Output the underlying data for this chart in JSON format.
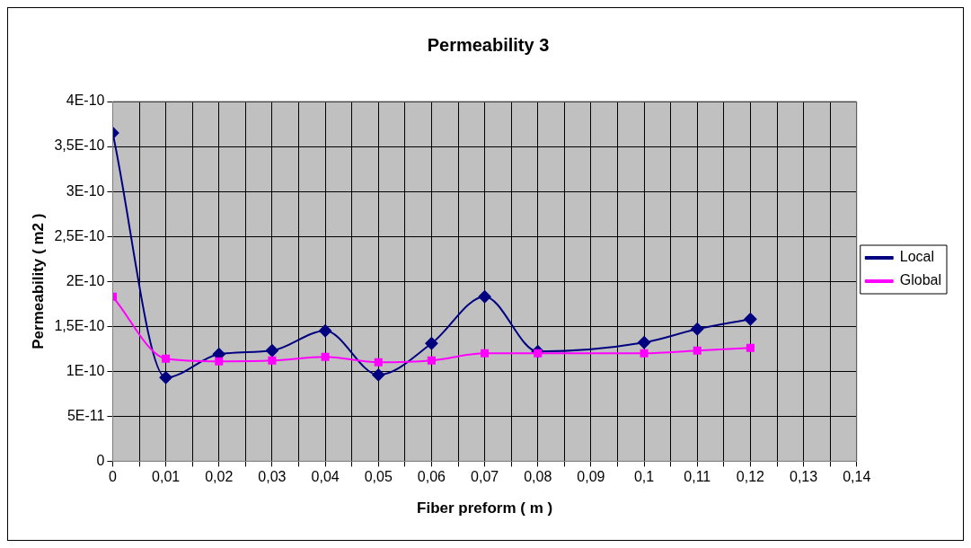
{
  "chart_data": {
    "type": "line",
    "title": "Permeability 3",
    "xlabel": "Fiber preform ( m )",
    "ylabel": "Permeability ( m2 )",
    "x": [
      0,
      0.01,
      0.02,
      0.03,
      0.04,
      0.05,
      0.06,
      0.07,
      0.08,
      0.1,
      0.11,
      0.12
    ],
    "series": [
      {
        "name": "Local",
        "color": "#000080",
        "marker": "diamond",
        "values": [
          3.65e-10,
          9.3e-11,
          1.19e-10,
          1.23e-10,
          1.45e-10,
          9.6e-11,
          1.31e-10,
          1.83e-10,
          1.22e-10,
          1.32e-10,
          1.47e-10,
          1.58e-10
        ]
      },
      {
        "name": "Global",
        "color": "#ff00ff",
        "marker": "square",
        "values": [
          1.83e-10,
          1.14e-10,
          1.11e-10,
          1.12e-10,
          1.16e-10,
          1.1e-10,
          1.12e-10,
          1.2e-10,
          1.2e-10,
          1.2e-10,
          1.23e-10,
          1.26e-10
        ]
      }
    ],
    "xlim": [
      0,
      0.14
    ],
    "xticks": [
      0,
      {
        "value": 0.005,
        "label": null
      },
      {
        "value": 0.01,
        "label": "0,01"
      },
      {
        "value": 0.015,
        "label": null
      },
      {
        "value": 0.02,
        "label": "0,02"
      },
      {
        "value": 0.025,
        "label": null
      },
      {
        "value": 0.03,
        "label": "0,03"
      },
      {
        "value": 0.035,
        "label": null
      },
      {
        "value": 0.04,
        "label": "0,04"
      },
      {
        "value": 0.045,
        "label": null
      },
      {
        "value": 0.05,
        "label": "0,05"
      },
      {
        "value": 0.055,
        "label": null
      },
      {
        "value": 0.06,
        "label": "0,06"
      },
      {
        "value": 0.065,
        "label": null
      },
      {
        "value": 0.07,
        "label": "0,07"
      },
      {
        "value": 0.075,
        "label": null
      },
      {
        "value": 0.08,
        "label": "0,08"
      },
      {
        "value": 0.085,
        "label": null
      },
      {
        "value": 0.09,
        "label": "0,09"
      },
      {
        "value": 0.095,
        "label": null
      },
      {
        "value": 0.1,
        "label": "0,1"
      },
      {
        "value": 0.105,
        "label": null
      },
      {
        "value": 0.11,
        "label": "0,11"
      },
      {
        "value": 0.115,
        "label": null
      },
      {
        "value": 0.12,
        "label": "0,12"
      },
      {
        "value": 0.125,
        "label": null
      },
      {
        "value": 0.13,
        "label": "0,13"
      },
      {
        "value": 0.135,
        "label": null
      },
      {
        "value": 0.14,
        "label": "0,14"
      }
    ],
    "ylim": [
      0,
      4e-10
    ],
    "yticks": [
      0,
      {
        "value": 5e-11,
        "label": "5E-11"
      },
      {
        "value": 1e-10,
        "label": "1E-10"
      },
      {
        "value": 1.5e-10,
        "label": "1,5E-10"
      },
      {
        "value": 2e-10,
        "label": "2E-10"
      },
      {
        "value": 2.5e-10,
        "label": "2,5E-10"
      },
      {
        "value": 3e-10,
        "label": "3E-10"
      },
      {
        "value": 3.5e-10,
        "label": "3,5E-10"
      },
      {
        "value": 4e-10,
        "label": "4E-10"
      }
    ],
    "grid": true,
    "legend": "right",
    "line_style": "solid"
  }
}
